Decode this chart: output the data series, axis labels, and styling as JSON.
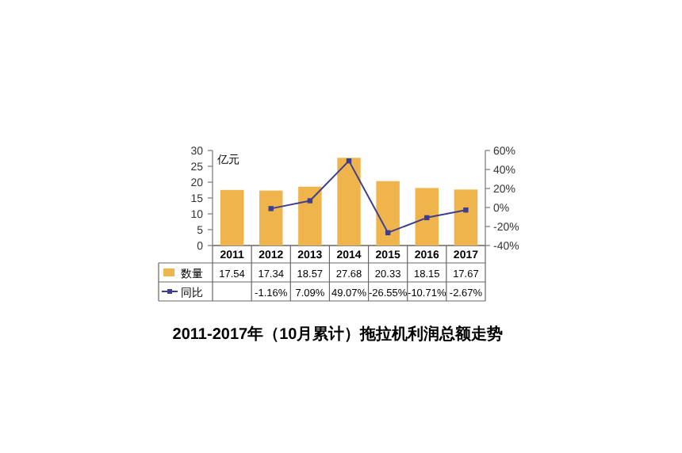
{
  "chart_data": {
    "type": "bar",
    "title": "2011-2017年（10月累计）拖拉机利润总额走势",
    "ylabel": "亿元",
    "categories": [
      "2011",
      "2012",
      "2013",
      "2014",
      "2015",
      "2016",
      "2017"
    ],
    "series": [
      {
        "name": "数量",
        "color": "#f0b44c",
        "values": [
          17.54,
          17.34,
          18.57,
          27.68,
          20.33,
          18.15,
          17.67
        ]
      },
      {
        "name": "同比",
        "type": "line",
        "axis": "y2",
        "color": "#3c3f8f",
        "marker": "square",
        "values": [
          null,
          -1.16,
          7.09,
          49.07,
          -26.55,
          -10.71,
          -2.67
        ],
        "value_labels": [
          null,
          "-1.16%",
          "7.09%",
          "49.07%",
          "-26.55%",
          "-10.71%",
          "-2.67%"
        ]
      }
    ],
    "ylim": [
      0,
      30
    ],
    "yticks": [
      0,
      5,
      10,
      15,
      20,
      25,
      30
    ],
    "y2lim": [
      -40,
      60
    ],
    "y2ticks": [
      {
        "value": -40,
        "label": "-40%"
      },
      {
        "value": -20,
        "label": "-20%"
      },
      {
        "value": 0,
        "label": "0%"
      },
      {
        "value": 20,
        "label": "20%"
      },
      {
        "value": 40,
        "label": "40%"
      },
      {
        "value": 60,
        "label": "60%"
      }
    ],
    "data_labels": true,
    "grid": false,
    "legend": "bottom"
  }
}
